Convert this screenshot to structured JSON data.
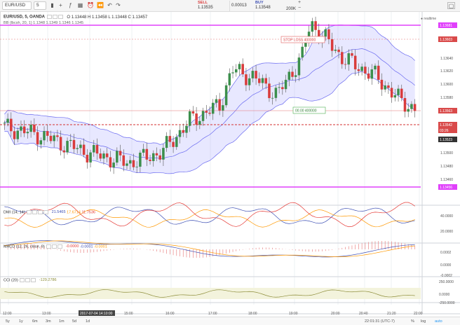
{
  "toolbar": {
    "symbol": "EUR/USD",
    "interval": "5",
    "sell_label": "SELL",
    "sell_price": "1.13535",
    "spread": "0.00013",
    "buy_label": "BUY",
    "buy_price": "1.13548",
    "lot": "200K"
  },
  "legend": {
    "title": "EUR/USD, 5, OANDA",
    "ohlc": "O 1.13448  H 1.13458  L 1.13448  C 1.13457",
    "bb": "BB (lbcsh, 20, 1)   1.1348  1.1349  1.1346  1.1345",
    "realtime": "realtime"
  },
  "orders": {
    "stop_loss_label": "STOP LOSS",
    "stop_loss_qty": "400000",
    "entry_value": "00.00",
    "entry_qty": "400000"
  },
  "price_axis": {
    "ticks": [
      "1.13640",
      "1.13620",
      "1.13600",
      "1.13580",
      "1.13540",
      "1.13500",
      "1.13480",
      "1.13460"
    ],
    "tags": [
      {
        "text": "1.13681",
        "color": "#e040fb"
      },
      {
        "text": "1.13603",
        "color": "#d94a4a"
      },
      {
        "text": "1.13563",
        "color": "#d94a4a"
      },
      {
        "text": "1.13542",
        "color": "#d94a4a"
      },
      {
        "text": "03:26",
        "color": "#d94a4a"
      },
      {
        "text": "1.13523",
        "color": "#333333"
      },
      {
        "text": "1.13456",
        "color": "#e040fb"
      }
    ]
  },
  "panes": {
    "dmi_legend": "DMI (14, 14)",
    "dmi_values": [
      "21.5465",
      "17.6714",
      "11.7536"
    ],
    "dmi_ticks": [
      "40.0000",
      "20.0000"
    ],
    "macd_legend": "MACD (12, 26, close, 9)",
    "macd_values": [
      "-0.0000",
      "-0.0001",
      "-0.0001"
    ],
    "macd_ticks": [
      "0.0002",
      "0.0000",
      "-0.0002"
    ],
    "cci_legend": "CCI (20)",
    "cci_value": "-129.2786",
    "cci_ticks": [
      "250.0000",
      "0.0000",
      "-250.0000"
    ]
  },
  "time_axis": {
    "labels": [
      "12:00",
      "13:00",
      "15:00",
      "16:00",
      "17:00",
      "18:00",
      "19:00",
      "20:00",
      "20:40",
      "21:20",
      "22:00"
    ],
    "cursor_label": "2017-07-04 14:10:00"
  },
  "bottom": {
    "ranges": [
      "5y",
      "1y",
      "6m",
      "3m",
      "1m",
      "5d",
      "1d"
    ],
    "clock": "22:01:31 (UTC-7)",
    "options": [
      "%",
      "log",
      "auto"
    ]
  },
  "colors": {
    "up": "#3c8f4c",
    "down": "#d93c3c",
    "band_fill": "#8080ff",
    "magenta": "#e040fb",
    "dmi_plus": "#3f51b5",
    "dmi_minus": "#ff9800",
    "adx": "#e53935",
    "cci": "#8d8d3a"
  }
}
